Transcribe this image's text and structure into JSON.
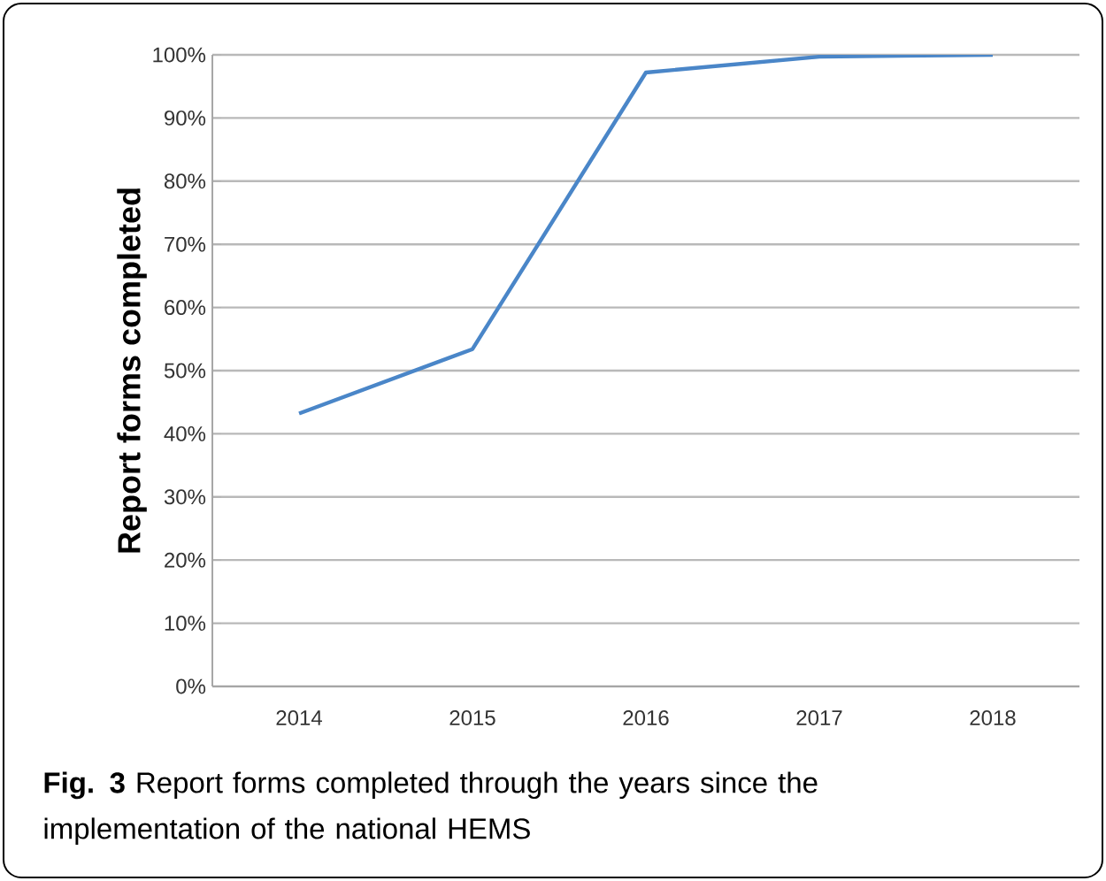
{
  "chart_data": {
    "type": "line",
    "ylabel": "Report forms completed",
    "categories": [
      "2014",
      "2015",
      "2016",
      "2017",
      "2018"
    ],
    "series": [
      {
        "color": "#4a86c8",
        "values": [
          43.2,
          53.4,
          97.2,
          99.7,
          100
        ]
      }
    ],
    "ylim": [
      0,
      100
    ],
    "yticks": [
      {
        "value": 0,
        "label": "0%"
      },
      {
        "value": 10,
        "label": "10%"
      },
      {
        "value": 20,
        "label": "20%"
      },
      {
        "value": 30,
        "label": "30%"
      },
      {
        "value": 40,
        "label": "40%"
      },
      {
        "value": 50,
        "label": "50%"
      },
      {
        "value": 60,
        "label": "60%"
      },
      {
        "value": 70,
        "label": "70%"
      },
      {
        "value": 80,
        "label": "80%"
      },
      {
        "value": 90,
        "label": "90%"
      },
      {
        "value": 100,
        "label": "100%"
      }
    ],
    "grid": "y",
    "marker": "none",
    "line_style": "solid",
    "annotations": [
      "**Fig. 3** Report forms completed through the years since the implementation of the national HEMS"
    ]
  }
}
